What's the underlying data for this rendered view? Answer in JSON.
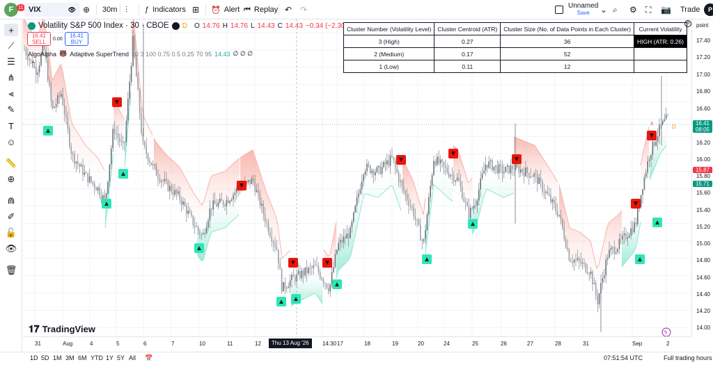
{
  "topbar": {
    "avatar_letter": "F",
    "notifications": "11",
    "symbol": "VIX",
    "interval": "30m",
    "indicators_label": "Indicators",
    "alert_label": "Alert",
    "replay_label": "Replay",
    "layout_name": "Unnamed",
    "save_label": "Save",
    "trade_label": "Trade",
    "profile_letter": "P"
  },
  "legend": {
    "symbol_title": "Volatility S&P 500 Index · 30 · CBOE",
    "source_flag": "D",
    "open_label": "O",
    "open": "14.76",
    "high_label": "H",
    "high": "14.76",
    "low_label": "L",
    "low": "14.43",
    "close_label": "C",
    "close": "14.43",
    "change": "−0.34 (−2.30%)",
    "sell_price": "16.41",
    "sell_label": "SELL",
    "buy_price": "16.41",
    "buy_label": "BUY",
    "spread": "0.00",
    "indicator_author": "AlgoAlpha",
    "indicator_name": "Adaptive SuperTrend",
    "indicator_params": "10 3 100 0.75 0.5 0.25 70 95",
    "indicator_value": "14.43",
    "indicator_extra": "∅ ∅ ∅"
  },
  "cluster_table": {
    "headers": [
      "Cluster Number (Volatility Level)",
      "Cluster Centroid (ATR)",
      "Cluster Size (No. of Data Points in Each Cluster)",
      "Current Volatility"
    ],
    "rows": [
      [
        "3 (High)",
        "0.27",
        "36",
        "HIGH (ATR: 0.26)"
      ],
      [
        "2 (Medium)",
        "0.17",
        "52",
        ""
      ],
      [
        "1 (Low)",
        "0.11",
        "12",
        ""
      ]
    ]
  },
  "price_axis": {
    "header": "point",
    "ticks": [
      "17.40",
      "17.20",
      "17.00",
      "16.80",
      "16.60",
      "16.20",
      "16.00",
      "15.80",
      "15.60",
      "15.40",
      "15.20",
      "15.00",
      "14.80",
      "14.60",
      "14.40",
      "14.20",
      "14.00"
    ],
    "last_price": "16.41",
    "countdown": "08:05",
    "st_red": "15.87",
    "st_green": "15.71",
    "colors": {
      "last": "#089981",
      "red": "#f23645",
      "green": "#089981"
    }
  },
  "time_axis": {
    "labels": [
      "31",
      "Aug",
      "4",
      "5",
      "6",
      "7",
      "10",
      "11",
      "12",
      "14:30",
      "17",
      "18",
      "19",
      "20",
      "24",
      "25",
      "26",
      "27",
      "28",
      "31",
      "Sep",
      "2"
    ],
    "crosshair": "Thu 13 Aug '26"
  },
  "chart_data": {
    "type": "candlestick",
    "symbol": "VIX",
    "interval": "30",
    "y_range": [
      13.9,
      17.55
    ],
    "supertrend_signals": {
      "buy_count": 11,
      "sell_count": 9
    }
  },
  "bottom": {
    "ranges": [
      "1D",
      "5D",
      "1M",
      "3M",
      "6M",
      "YTD",
      "1Y",
      "5Y",
      "All"
    ],
    "clock": "07:51:54 UTC",
    "session": "Full trading hours"
  },
  "brand": {
    "name": "TradingView"
  },
  "markers": {
    "d": "D",
    "three": "3"
  }
}
